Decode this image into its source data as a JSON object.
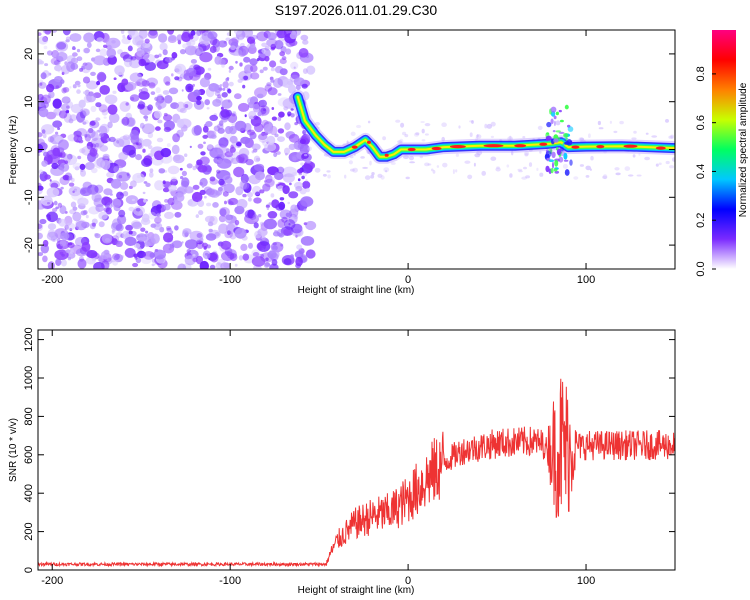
{
  "page_title": "S197.2026.011.01.29.C30",
  "chart_data": [
    {
      "type": "heatmap",
      "title": "S197.2026.011.01.29.C30",
      "xlabel": "Height of straight line (km)",
      "ylabel": "Frequency (Hz)",
      "xlim": [
        -208,
        150
      ],
      "ylim": [
        -25,
        25
      ],
      "xticks": [
        -200,
        -100,
        0,
        100
      ],
      "yticks": [
        -20,
        -10,
        0,
        10,
        20
      ],
      "noise_region_x": [
        -208,
        -58
      ],
      "ridge": {
        "name": "Doppler ridge",
        "x": [
          -62,
          -58,
          -52,
          -47,
          -42,
          -36,
          -30,
          -24,
          -20,
          -16,
          -12,
          -8,
          -4,
          0,
          10,
          20,
          40,
          60,
          80,
          86,
          90,
          100,
          120,
          150
        ],
        "hz": [
          11,
          6,
          3,
          1,
          -0.5,
          -0.5,
          0.5,
          2,
          0.5,
          -1.5,
          -1.5,
          -1,
          0,
          0,
          0,
          0.5,
          0.8,
          0.8,
          1.2,
          1.5,
          0.5,
          0.6,
          0.7,
          0.3
        ]
      },
      "colorbar": {
        "label": "Normalized spectral amplitude",
        "ticks": [
          0.0,
          0.2,
          0.4,
          0.6,
          0.8
        ],
        "tick_labels": [
          "0.0",
          "0.2",
          "0.4",
          "0.6",
          "0.8"
        ],
        "colors": [
          "#ffffff",
          "#7b2bff",
          "#0000ff",
          "#00c8ff",
          "#00ff60",
          "#c8ff00",
          "#ff8000",
          "#ff0000",
          "#ff0080"
        ]
      }
    },
    {
      "type": "line",
      "xlabel": "Height of straight line (km)",
      "ylabel": "SNR (10 * v/v)",
      "xlim": [
        -208,
        150
      ],
      "ylim": [
        0,
        1250
      ],
      "xticks": [
        -200,
        -100,
        0,
        100
      ],
      "yticks": [
        0,
        200,
        400,
        600,
        800,
        1000,
        1200
      ],
      "series": [
        {
          "name": "SNR",
          "color": "#ee3333",
          "envelope_x": [
            -208,
            -60,
            -46,
            -44,
            -40,
            -30,
            -20,
            -10,
            0,
            10,
            20,
            30,
            50,
            70,
            78,
            82,
            86,
            90,
            94,
            100,
            150
          ],
          "envelope_y": [
            30,
            30,
            30,
            80,
            150,
            240,
            280,
            300,
            370,
            470,
            560,
            620,
            660,
            670,
            650,
            620,
            650,
            620,
            640,
            650,
            650
          ]
        }
      ]
    }
  ]
}
